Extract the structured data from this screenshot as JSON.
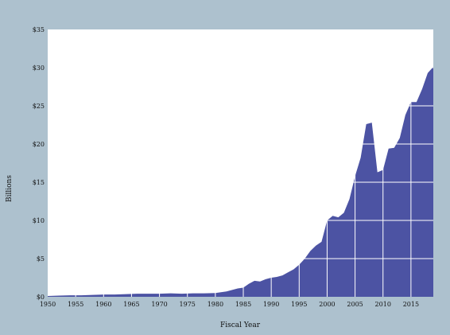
{
  "chart_data": {
    "type": "area",
    "title": "",
    "xlabel": "Fiscal Year",
    "ylabel": "Billions",
    "xlim": [
      1950,
      2019
    ],
    "ylim": [
      0,
      35
    ],
    "grid": true,
    "colors": {
      "fill": "#4c53a3",
      "plot_bg": "#ffffff",
      "page_bg": "#adc1ce",
      "grid": "#ffffff"
    },
    "x_ticks": [
      1950,
      1955,
      1960,
      1965,
      1970,
      1975,
      1980,
      1985,
      1990,
      1995,
      2000,
      2005,
      2010,
      2015
    ],
    "x_tick_labels": [
      "1950",
      "1955",
      "1960",
      "1965",
      "1970",
      "1975",
      "1980",
      "1985",
      "1990",
      "1995",
      "2000",
      "2005",
      "2010",
      "2015"
    ],
    "y_ticks": [
      0,
      5,
      10,
      15,
      20,
      25,
      30,
      35
    ],
    "y_tick_labels": [
      "$0",
      "$5",
      "$10",
      "$15",
      "$20",
      "$25",
      "$30",
      "$35"
    ],
    "series": [
      {
        "x": [
          1950,
          1952,
          1954,
          1956,
          1958,
          1960,
          1962,
          1964,
          1966,
          1968,
          1970,
          1972,
          1974,
          1976,
          1978,
          1980,
          1982,
          1983,
          1984,
          1985,
          1986,
          1987,
          1988,
          1989,
          1990,
          1991,
          1992,
          1993,
          1994,
          1995,
          1996,
          1997,
          1998,
          1999,
          2000,
          2001,
          2002,
          2003,
          2004,
          2005,
          2006,
          2007,
          2008,
          2009,
          2010,
          2011,
          2012,
          2013,
          2014,
          2015,
          2016,
          2017,
          2018,
          2019
        ],
        "values": [
          0.1,
          0.15,
          0.2,
          0.2,
          0.25,
          0.3,
          0.3,
          0.35,
          0.4,
          0.4,
          0.4,
          0.45,
          0.4,
          0.45,
          0.45,
          0.5,
          0.7,
          0.9,
          1.1,
          1.2,
          1.7,
          2.1,
          2.0,
          2.3,
          2.5,
          2.6,
          2.8,
          3.2,
          3.6,
          4.2,
          5.0,
          6.0,
          6.7,
          7.2,
          10.0,
          10.6,
          10.4,
          11.0,
          12.8,
          15.8,
          18.2,
          22.6,
          22.8,
          16.3,
          16.6,
          19.4,
          19.5,
          20.8,
          23.8,
          25.5,
          25.5,
          27.2,
          29.3,
          30.1
        ]
      }
    ]
  }
}
